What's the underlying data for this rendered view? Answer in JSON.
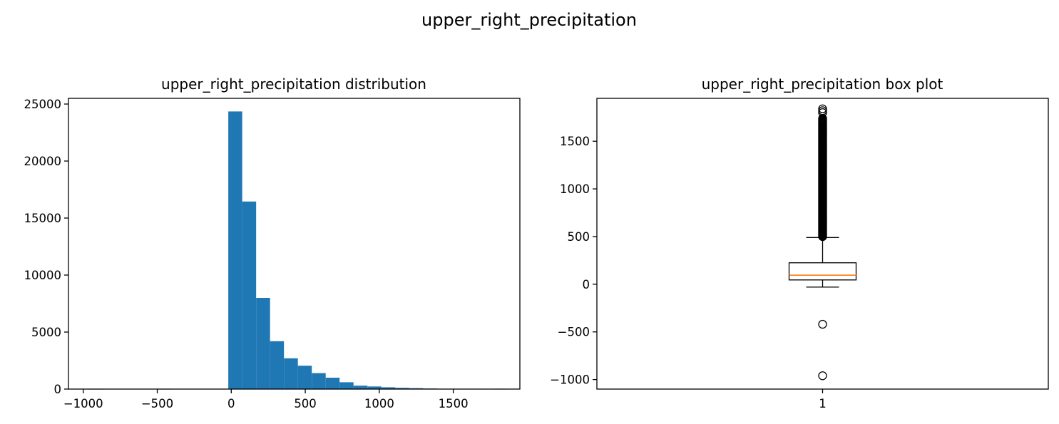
{
  "figure": {
    "suptitle": "upper_right_precipitation"
  },
  "chart_data": [
    {
      "type": "bar",
      "subtype": "histogram",
      "title": "upper_right_precipitation distribution",
      "xlabel": "",
      "ylabel": "",
      "xlim": [
        -1100,
        1950
      ],
      "ylim": [
        0,
        25500
      ],
      "xticks": [
        -1000,
        -500,
        0,
        500,
        1000,
        1500
      ],
      "xtick_labels": [
        "−1000",
        "−500",
        "0",
        "500",
        "1000",
        "1500"
      ],
      "yticks": [
        0,
        5000,
        10000,
        15000,
        20000,
        25000
      ],
      "ytick_labels": [
        "0",
        "5000",
        "10000",
        "15000",
        "20000",
        "25000"
      ],
      "color": "#1f77b4",
      "bin_edges": [
        -960,
        -866,
        -772,
        -678,
        -584,
        -490,
        -396,
        -302,
        -208,
        -114,
        -20,
        74,
        168,
        262,
        356,
        450,
        544,
        638,
        732,
        826,
        920,
        1014,
        1108,
        1202,
        1296,
        1390,
        1484,
        1578,
        1672,
        1766,
        1860
      ],
      "counts": [
        1,
        0,
        0,
        0,
        0,
        2,
        0,
        0,
        0,
        0,
        24350,
        16450,
        8000,
        4200,
        2700,
        2050,
        1400,
        1000,
        600,
        300,
        230,
        160,
        110,
        80,
        50,
        30,
        20,
        10,
        6,
        3
      ],
      "grid": false
    },
    {
      "type": "box",
      "title": "upper_right_precipitation box plot",
      "xlabel": "",
      "ylabel": "",
      "ylim": [
        -1100,
        1950
      ],
      "yticks": [
        -1000,
        -500,
        0,
        500,
        1000,
        1500
      ],
      "ytick_labels": [
        "−1000",
        "−500",
        "0",
        "500",
        "1000",
        "1500"
      ],
      "xticks": [
        1
      ],
      "xtick_labels": [
        "1"
      ],
      "box": {
        "whisker_low": -30,
        "q1": 45,
        "median": 95,
        "q3": 225,
        "whisker_high": 490
      },
      "outliers": [
        -420,
        -960,
        500,
        600,
        700,
        800,
        900,
        1000,
        1100,
        1200,
        1300,
        1400,
        1500,
        1600,
        1700,
        1740,
        1800,
        1820,
        1840
      ],
      "box_color": "#000000",
      "median_color": "#ff7f0e",
      "grid": false
    }
  ]
}
